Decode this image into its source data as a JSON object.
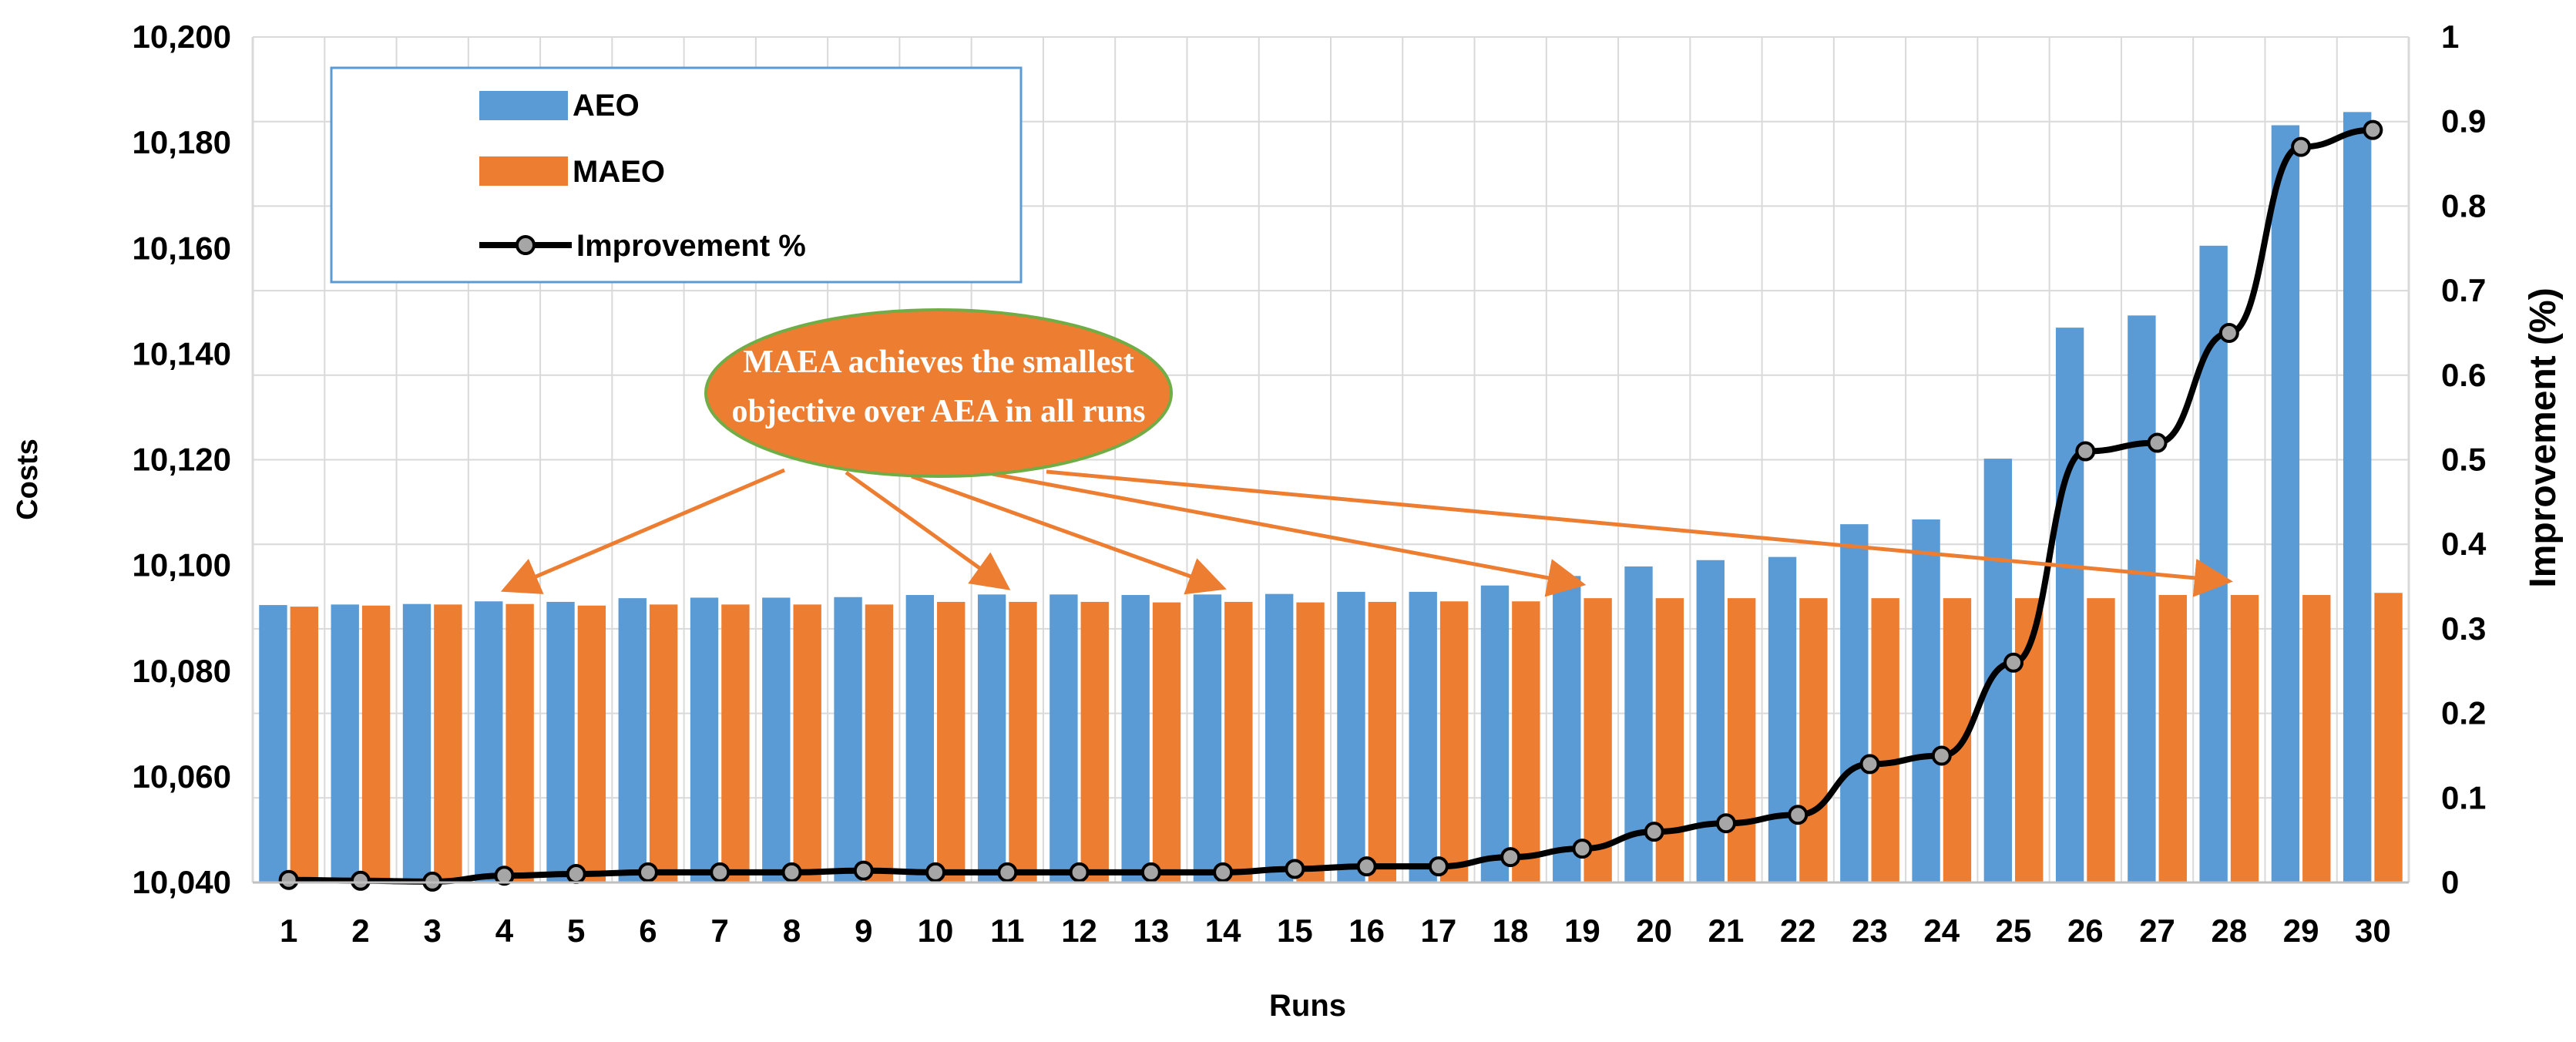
{
  "chart_data": {
    "type": "bar",
    "categories": [
      "1",
      "2",
      "3",
      "4",
      "5",
      "6",
      "7",
      "8",
      "9",
      "10",
      "11",
      "12",
      "13",
      "14",
      "15",
      "16",
      "17",
      "18",
      "19",
      "20",
      "21",
      "22",
      "23",
      "24",
      "25",
      "26",
      "27",
      "28",
      "29",
      "30"
    ],
    "series": [
      {
        "name": "AEO",
        "type": "bar",
        "color": "#5b9bd5",
        "axis": "left",
        "values": [
          10092.5,
          10092.6,
          10092.7,
          10093.2,
          10093.1,
          10093.8,
          10093.9,
          10093.9,
          10094.0,
          10094.4,
          10094.5,
          10094.5,
          10094.4,
          10094.5,
          10094.6,
          10095.0,
          10095.0,
          10096.2,
          10098.0,
          10099.8,
          10101.0,
          10101.6,
          10107.8,
          10108.7,
          10120.2,
          10145.0,
          10147.3,
          10160.5,
          10183.3,
          10185.8
        ]
      },
      {
        "name": "MAEO",
        "type": "bar",
        "color": "#ed7d31",
        "axis": "left",
        "values": [
          10092.2,
          10092.4,
          10092.6,
          10092.7,
          10092.4,
          10092.6,
          10092.6,
          10092.6,
          10092.6,
          10093.1,
          10093.1,
          10093.1,
          10093.0,
          10093.1,
          10093.0,
          10093.1,
          10093.2,
          10093.2,
          10093.8,
          10093.8,
          10093.8,
          10093.8,
          10093.8,
          10093.8,
          10093.8,
          10093.8,
          10094.4,
          10094.4,
          10094.4,
          10094.8
        ]
      },
      {
        "name": "Improvement %",
        "type": "line",
        "color": "#000000",
        "marker_color": "#a6a6a6",
        "axis": "right",
        "values": [
          0.003,
          0.002,
          0.001,
          0.008,
          0.01,
          0.012,
          0.012,
          0.012,
          0.014,
          0.012,
          0.012,
          0.012,
          0.012,
          0.012,
          0.016,
          0.019,
          0.019,
          0.03,
          0.04,
          0.06,
          0.07,
          0.08,
          0.14,
          0.15,
          0.26,
          0.51,
          0.52,
          0.65,
          0.87,
          0.89
        ]
      }
    ],
    "xlabel": "Runs",
    "ylabel": "Costs",
    "y2label": "Improvement (%)",
    "ylim": [
      10040,
      10200
    ],
    "yticks": [
      "10,040",
      "10,060",
      "10,080",
      "10,100",
      "10,120",
      "10,140",
      "10,160",
      "10,180",
      "10,200"
    ],
    "y2lim": [
      0,
      1
    ],
    "y2ticks": [
      "0",
      "0.1",
      "0.2",
      "0.3",
      "0.4",
      "0.5",
      "0.6",
      "0.7",
      "0.8",
      "0.9",
      "1"
    ],
    "grid": true,
    "legend_position": "top-left",
    "legend_entries": [
      "AEO",
      "MAEO",
      "Improvement %"
    ],
    "annotation": {
      "line1": "MAEA achieves the smallest",
      "line2": "objective over AEA in all runs",
      "fill": "#ed7d31",
      "border": "#70ad47",
      "arrow_color": "#ed7d31",
      "arrow_targets": [
        4,
        11,
        14,
        19,
        28
      ]
    }
  }
}
